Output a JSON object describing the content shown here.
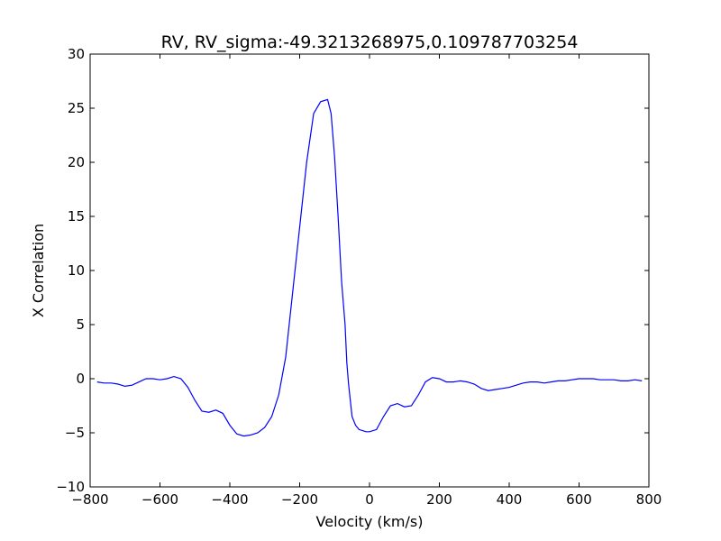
{
  "chart_data": {
    "type": "line",
    "title": "RV, RV_sigma:-49.3213268975,0.109787703254",
    "xlabel": "Velocity (km/s)",
    "ylabel": "X Correlation",
    "xlim": [
      -800,
      800
    ],
    "ylim": [
      -10,
      30
    ],
    "xticks": [
      -800,
      -600,
      -400,
      -200,
      0,
      200,
      400,
      600,
      800
    ],
    "xtick_labels": [
      "−800",
      "−600",
      "−400",
      "−200",
      "0",
      "200",
      "400",
      "600",
      "800"
    ],
    "yticks": [
      -10,
      -5,
      0,
      5,
      10,
      15,
      20,
      25,
      30
    ],
    "ytick_labels": [
      "−10",
      "−5",
      "0",
      "5",
      "10",
      "15",
      "20",
      "25",
      "30"
    ],
    "grid": false,
    "line_color": "#0000ff",
    "series": [
      {
        "x": [
          -780,
          -760,
          -740,
          -720,
          -700,
          -680,
          -660,
          -640,
          -620,
          -600,
          -580,
          -560,
          -540,
          -520,
          -500,
          -480,
          -460,
          -440,
          -420,
          -400,
          -380,
          -360,
          -340,
          -320,
          -300,
          -280,
          -260,
          -240,
          -220,
          -200,
          -180,
          -160,
          -140,
          -120,
          -110,
          -100,
          -90,
          -80,
          -70,
          -65,
          -60,
          -55,
          -50,
          -40,
          -30,
          -20,
          -10,
          0,
          20,
          40,
          60,
          80,
          100,
          120,
          140,
          160,
          180,
          200,
          220,
          240,
          260,
          280,
          300,
          320,
          340,
          360,
          380,
          400,
          420,
          440,
          460,
          480,
          500,
          520,
          540,
          560,
          580,
          600,
          620,
          640,
          660,
          680,
          700,
          720,
          740,
          760,
          780
        ],
        "y": [
          -0.3,
          -0.4,
          -0.4,
          -0.5,
          -0.7,
          -0.6,
          -0.3,
          0.0,
          0.0,
          -0.1,
          0.0,
          0.2,
          0.0,
          -0.8,
          -2.0,
          -3.0,
          -3.1,
          -2.9,
          -3.2,
          -4.3,
          -5.1,
          -5.3,
          -5.2,
          -5.0,
          -4.5,
          -3.5,
          -1.5,
          2.0,
          8.0,
          14.0,
          20.0,
          24.5,
          25.6,
          25.8,
          24.5,
          20.5,
          15.0,
          9.0,
          5.0,
          1.5,
          -0.5,
          -2.0,
          -3.5,
          -4.3,
          -4.7,
          -4.8,
          -4.9,
          -4.9,
          -4.7,
          -3.5,
          -2.5,
          -2.3,
          -2.6,
          -2.5,
          -1.5,
          -0.3,
          0.1,
          0.0,
          -0.3,
          -0.3,
          -0.2,
          -0.3,
          -0.5,
          -0.9,
          -1.1,
          -1.0,
          -0.9,
          -0.8,
          -0.6,
          -0.4,
          -0.3,
          -0.3,
          -0.4,
          -0.3,
          -0.2,
          -0.2,
          -0.1,
          0.0,
          0.0,
          0.0,
          -0.1,
          -0.1,
          -0.1,
          -0.2,
          -0.2,
          -0.1,
          -0.2
        ]
      }
    ]
  }
}
